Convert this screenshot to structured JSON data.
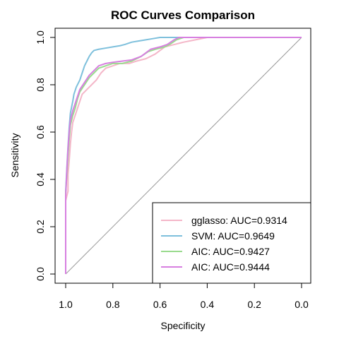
{
  "chart_data": {
    "type": "line",
    "title": "ROC Curves Comparison",
    "xlabel": "Specificity",
    "ylabel": "Sensitivity",
    "xlim": [
      1.0,
      0.0
    ],
    "ylim": [
      0.0,
      1.0
    ],
    "x_reversed": true,
    "xticks": [
      "1.0",
      "0.8",
      "0.6",
      "0.4",
      "0.2",
      "0.0"
    ],
    "xtick_values": [
      1.0,
      0.8,
      0.6,
      0.4,
      0.2,
      0.0
    ],
    "yticks": [
      "0.0",
      "0.2",
      "0.4",
      "0.6",
      "0.8",
      "1.0"
    ],
    "ytick_values": [
      0.0,
      0.2,
      0.4,
      0.6,
      0.8,
      1.0
    ],
    "diagonal": {
      "color": "#999999"
    },
    "legend_position": "bottom-right",
    "series": [
      {
        "name": "gglasso: AUC=0.9314",
        "color": "#F4B6C8",
        "points": [
          [
            1.0,
            0.0
          ],
          [
            1.0,
            0.31
          ],
          [
            0.99,
            0.35
          ],
          [
            0.99,
            0.42
          ],
          [
            0.985,
            0.48
          ],
          [
            0.98,
            0.55
          ],
          [
            0.975,
            0.6
          ],
          [
            0.97,
            0.64
          ],
          [
            0.96,
            0.67
          ],
          [
            0.95,
            0.7
          ],
          [
            0.94,
            0.73
          ],
          [
            0.93,
            0.76
          ],
          [
            0.91,
            0.78
          ],
          [
            0.89,
            0.8
          ],
          [
            0.87,
            0.82
          ],
          [
            0.85,
            0.85
          ],
          [
            0.83,
            0.87
          ],
          [
            0.8,
            0.88
          ],
          [
            0.77,
            0.89
          ],
          [
            0.73,
            0.89
          ],
          [
            0.7,
            0.9
          ],
          [
            0.66,
            0.91
          ],
          [
            0.62,
            0.93
          ],
          [
            0.58,
            0.96
          ],
          [
            0.54,
            0.97
          ],
          [
            0.5,
            0.98
          ],
          [
            0.45,
            0.99
          ],
          [
            0.4,
            1.0
          ],
          [
            0.2,
            1.0
          ],
          [
            0.0,
            1.0
          ]
        ]
      },
      {
        "name": "SVM: AUC=0.9649",
        "color": "#7EC0DC",
        "points": [
          [
            1.0,
            0.0
          ],
          [
            1.0,
            0.35
          ],
          [
            0.995,
            0.45
          ],
          [
            0.99,
            0.54
          ],
          [
            0.985,
            0.62
          ],
          [
            0.98,
            0.68
          ],
          [
            0.97,
            0.73
          ],
          [
            0.965,
            0.76
          ],
          [
            0.955,
            0.79
          ],
          [
            0.94,
            0.82
          ],
          [
            0.93,
            0.85
          ],
          [
            0.92,
            0.88
          ],
          [
            0.91,
            0.9
          ],
          [
            0.9,
            0.92
          ],
          [
            0.89,
            0.935
          ],
          [
            0.88,
            0.945
          ],
          [
            0.86,
            0.95
          ],
          [
            0.83,
            0.955
          ],
          [
            0.8,
            0.96
          ],
          [
            0.77,
            0.965
          ],
          [
            0.75,
            0.97
          ],
          [
            0.72,
            0.98
          ],
          [
            0.69,
            0.985
          ],
          [
            0.66,
            0.99
          ],
          [
            0.63,
            0.995
          ],
          [
            0.6,
            1.0
          ],
          [
            0.55,
            1.0
          ],
          [
            0.4,
            1.0
          ],
          [
            0.2,
            1.0
          ],
          [
            0.0,
            1.0
          ]
        ]
      },
      {
        "name": "AIC: AUC=0.9427",
        "color": "#9ADB8E",
        "points": [
          [
            1.0,
            0.0
          ],
          [
            1.0,
            0.34
          ],
          [
            0.995,
            0.42
          ],
          [
            0.99,
            0.5
          ],
          [
            0.985,
            0.57
          ],
          [
            0.98,
            0.63
          ],
          [
            0.97,
            0.67
          ],
          [
            0.96,
            0.7
          ],
          [
            0.95,
            0.74
          ],
          [
            0.94,
            0.77
          ],
          [
            0.92,
            0.8
          ],
          [
            0.9,
            0.83
          ],
          [
            0.88,
            0.85
          ],
          [
            0.86,
            0.87
          ],
          [
            0.83,
            0.88
          ],
          [
            0.8,
            0.89
          ],
          [
            0.76,
            0.89
          ],
          [
            0.72,
            0.9
          ],
          [
            0.68,
            0.92
          ],
          [
            0.65,
            0.94
          ],
          [
            0.62,
            0.95
          ],
          [
            0.58,
            0.96
          ],
          [
            0.56,
            0.97
          ],
          [
            0.53,
            0.99
          ],
          [
            0.5,
            1.0
          ],
          [
            0.4,
            1.0
          ],
          [
            0.2,
            1.0
          ],
          [
            0.0,
            1.0
          ]
        ]
      },
      {
        "name": "AIC: AUC=0.9444",
        "color": "#D77FE0",
        "points": [
          [
            1.0,
            0.0
          ],
          [
            1.0,
            0.33
          ],
          [
            0.995,
            0.44
          ],
          [
            0.99,
            0.53
          ],
          [
            0.985,
            0.6
          ],
          [
            0.98,
            0.65
          ],
          [
            0.97,
            0.69
          ],
          [
            0.96,
            0.72
          ],
          [
            0.95,
            0.75
          ],
          [
            0.94,
            0.78
          ],
          [
            0.92,
            0.81
          ],
          [
            0.9,
            0.84
          ],
          [
            0.88,
            0.86
          ],
          [
            0.86,
            0.88
          ],
          [
            0.83,
            0.89
          ],
          [
            0.8,
            0.895
          ],
          [
            0.76,
            0.9
          ],
          [
            0.72,
            0.905
          ],
          [
            0.68,
            0.92
          ],
          [
            0.64,
            0.95
          ],
          [
            0.6,
            0.96
          ],
          [
            0.57,
            0.97
          ],
          [
            0.54,
            0.99
          ],
          [
            0.52,
            1.0
          ],
          [
            0.4,
            1.0
          ],
          [
            0.2,
            1.0
          ],
          [
            0.0,
            1.0
          ]
        ]
      }
    ]
  }
}
